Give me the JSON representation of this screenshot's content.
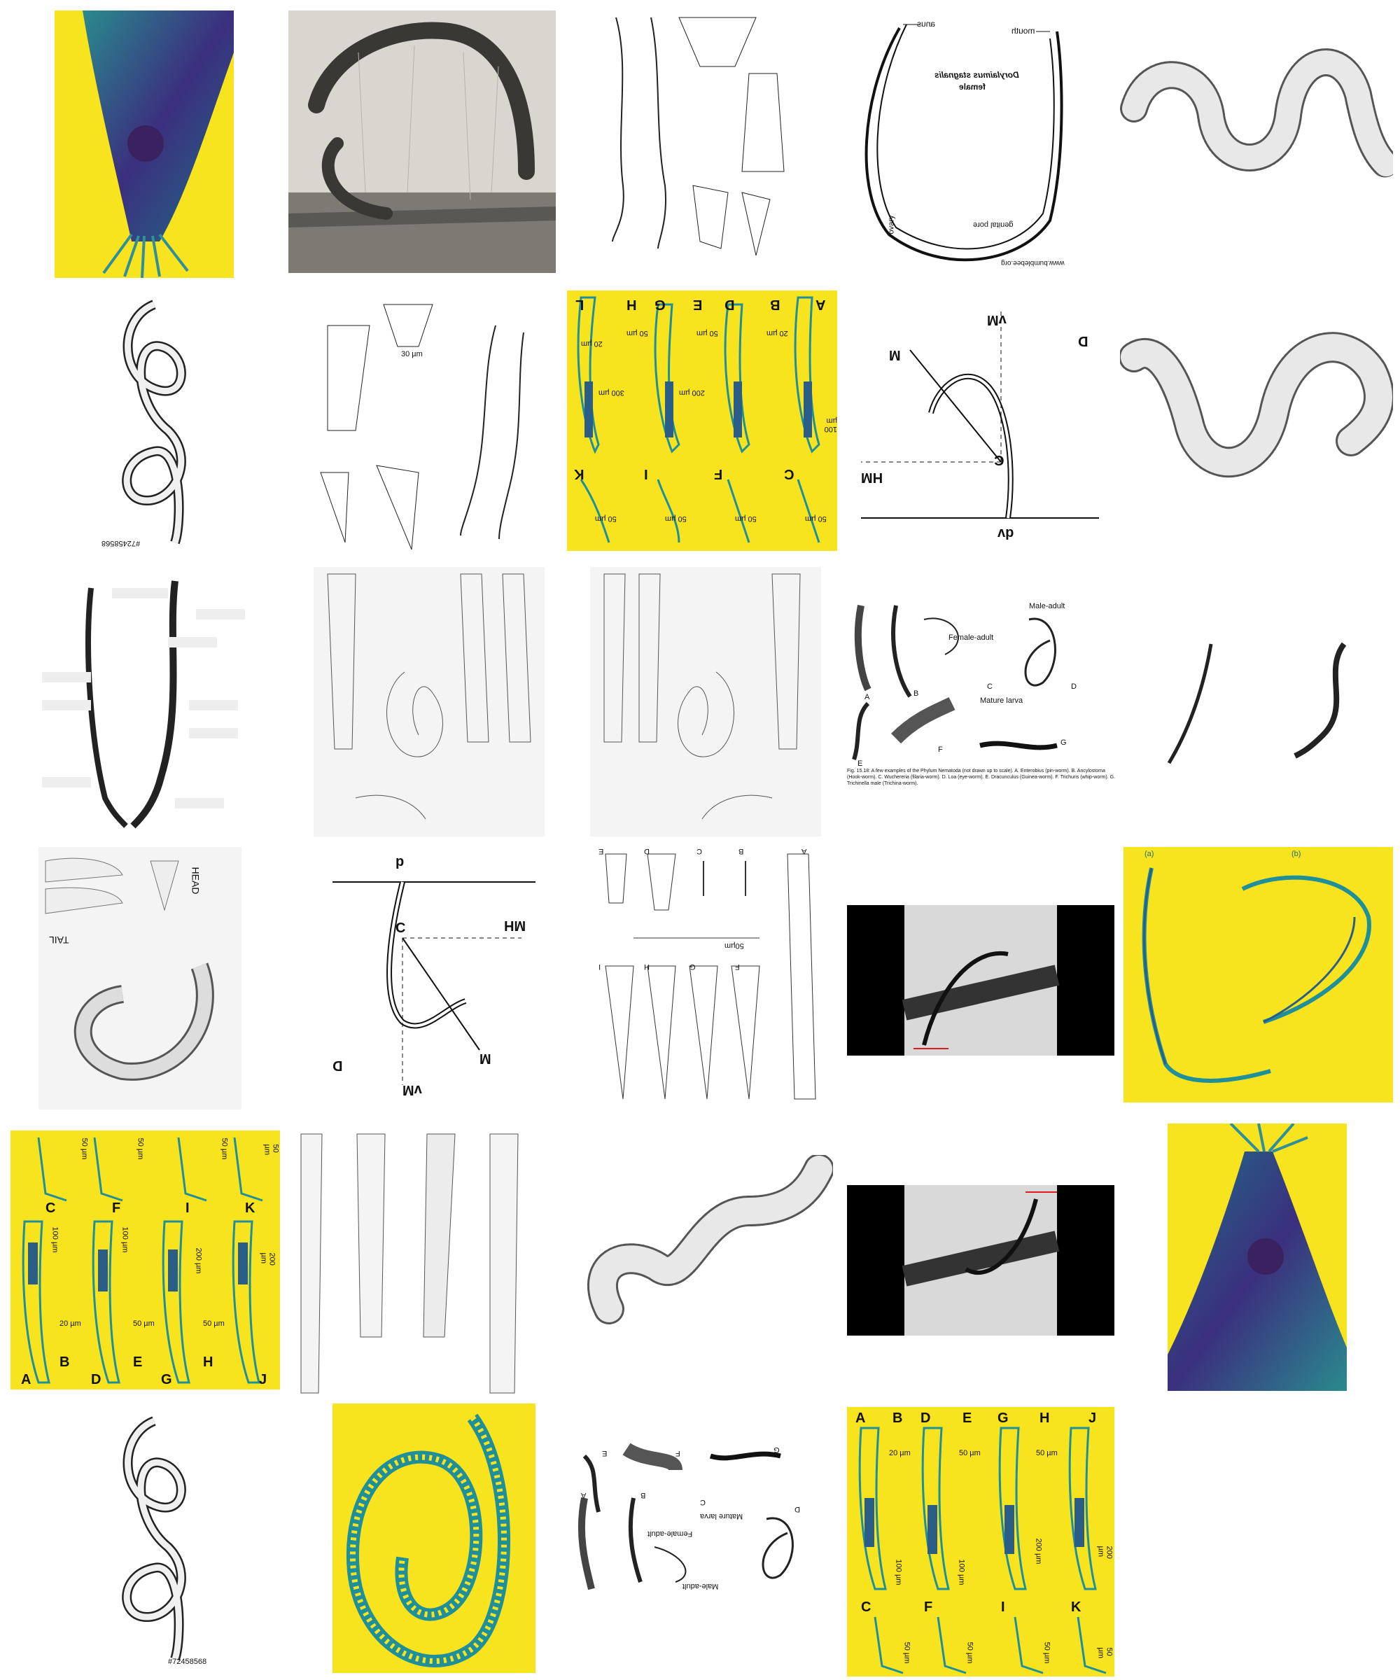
{
  "grid": {
    "tiles": [
      {
        "name": "tile-r1c1",
        "bg": "yellow",
        "kind": "micrograph-blue"
      },
      {
        "name": "tile-r1c2",
        "bg": "grey",
        "kind": "micrograph-root"
      },
      {
        "name": "tile-r1c3",
        "bg": "white",
        "kind": "line-drawing-set"
      },
      {
        "name": "tile-r1c4",
        "bg": "white",
        "kind": "labeled-diagram"
      },
      {
        "name": "tile-r1c5",
        "bg": "white",
        "kind": "stippled-worm"
      },
      {
        "name": "tile-r2c1",
        "bg": "white",
        "kind": "coiled-worm"
      },
      {
        "name": "tile-r2c2",
        "bg": "white",
        "kind": "line-drawing-set"
      },
      {
        "name": "tile-r2c3",
        "bg": "yellow",
        "kind": "plate"
      },
      {
        "name": "tile-r2c4",
        "bg": "white",
        "kind": "force-diagram"
      },
      {
        "name": "tile-r2c5",
        "bg": "white",
        "kind": "stippled-worm"
      },
      {
        "name": "tile-r3c1",
        "bg": "white",
        "kind": "anatomy-blank-labels"
      },
      {
        "name": "tile-r3c2",
        "bg": "paper",
        "kind": "plate"
      },
      {
        "name": "tile-r3c3",
        "bg": "paper",
        "kind": "plate"
      },
      {
        "name": "tile-r3c4",
        "bg": "white",
        "kind": "phylum-examples"
      },
      {
        "name": "tile-r3c5",
        "bg": "white",
        "kind": "two-worms"
      },
      {
        "name": "tile-r4c1",
        "bg": "paper",
        "kind": "sketch-sheet"
      },
      {
        "name": "tile-r4c2",
        "bg": "white",
        "kind": "force-diagram"
      },
      {
        "name": "tile-r4c3",
        "bg": "white",
        "kind": "plate"
      },
      {
        "name": "tile-r4c4",
        "bg": "dark",
        "kind": "micrograph-root"
      },
      {
        "name": "tile-r4c5",
        "bg": "yellow",
        "kind": "anatomy-labeled"
      },
      {
        "name": "tile-r5c1",
        "bg": "yellow",
        "kind": "plate"
      },
      {
        "name": "tile-r5c2",
        "bg": "white",
        "kind": "plate"
      },
      {
        "name": "tile-r5c3",
        "bg": "white",
        "kind": "stippled-worm"
      },
      {
        "name": "tile-r5c4",
        "bg": "dark",
        "kind": "micrograph-root"
      },
      {
        "name": "tile-r5c5",
        "bg": "yellow",
        "kind": "micrograph-blue"
      },
      {
        "name": "tile-r6c1",
        "bg": "white",
        "kind": "coiled-worm"
      },
      {
        "name": "tile-r6c2",
        "bg": "yellow",
        "kind": "coiled-worm"
      },
      {
        "name": "tile-r6c3",
        "bg": "white",
        "kind": "phylum-examples"
      },
      {
        "name": "tile-r6c4",
        "bg": "yellow",
        "kind": "plate"
      }
    ]
  },
  "r1c4": {
    "anus": "anus",
    "mouth": "mouth",
    "title1": "Dorylaimus stagnalis",
    "title2": "female",
    "ovary": "ovary",
    "pore": "genital pore",
    "url": "www.bumblebee.org"
  },
  "r2c1": {
    "id": "#72458568"
  },
  "r2c2": {
    "scale": "30 µm"
  },
  "r2c3": {
    "letters": [
      "L",
      "H",
      "G",
      "E",
      "D",
      "B",
      "A",
      "K",
      "I",
      "F",
      "C"
    ],
    "scales": [
      "20 µm",
      "50 µm",
      "50 µm",
      "20 µm",
      "300 µm",
      "200 µm",
      "100 µm",
      "50 µm",
      "50 µm",
      "50 µm",
      "50 µm"
    ]
  },
  "r2c4": {
    "mv": "vM",
    "m": "M",
    "mh": "HM",
    "c": "C",
    "d": "D",
    "p": "dv"
  },
  "r3c4": {
    "male": "Male-adult",
    "female": "Female-adult",
    "larva": "Mature larva",
    "letters": [
      "A",
      "B",
      "C",
      "D",
      "E",
      "F",
      "G"
    ],
    "caption": "Fig. 15.18: A few examples of the Phylum Nematoda (not drawn up to scale). A. Enterobius (pin-worm). B. Ancylostoma (Hook-worm). C. Wuchereria (filaria-worm). D. Loa (eye-worm). E. Dracunculus (Guinea-worm). F. Trichuris (whip-worm). G. Trichinella male (Trichina-worm)."
  },
  "r4c1": {
    "tail": "TAIL",
    "head": "HEAD"
  },
  "r4c2": {
    "p": "p",
    "c": "C",
    "mh": "MH",
    "m": "M",
    "mv": "vM",
    "d": "D"
  },
  "r4c3": {
    "letters": [
      "E",
      "D",
      "C",
      "B",
      "A",
      "I",
      "H",
      "G",
      "F"
    ],
    "scale": "50µm"
  },
  "r4c5": {
    "a": "(a)",
    "b": "(b)"
  },
  "r5c1": {
    "letters": [
      "C",
      "F",
      "I",
      "K",
      "A",
      "B",
      "D",
      "E",
      "G",
      "H",
      "J"
    ],
    "scales": [
      "50 µm",
      "50 µm",
      "50 µm",
      "50 µm",
      "100 µm",
      "100 µm",
      "200 µm",
      "200 µm",
      "20 µm",
      "50 µm",
      "50 µm"
    ]
  },
  "r6c1": {
    "id": "#72458568"
  },
  "r6c3": {
    "male": "Male-adult",
    "female": "Female-adult",
    "larva": "Mature larva",
    "letters": [
      "A",
      "B",
      "C",
      "D",
      "E",
      "F",
      "G"
    ]
  },
  "r6c4": {
    "letters": [
      "A",
      "B",
      "D",
      "E",
      "G",
      "H",
      "J",
      "C",
      "F",
      "I",
      "K"
    ],
    "scales": [
      "20 µm",
      "50 µm",
      "50 µm",
      "100 µm",
      "100 µm",
      "200 µm",
      "200 µm",
      "50 µm",
      "50 µm",
      "50 µm",
      "50 µm"
    ]
  }
}
